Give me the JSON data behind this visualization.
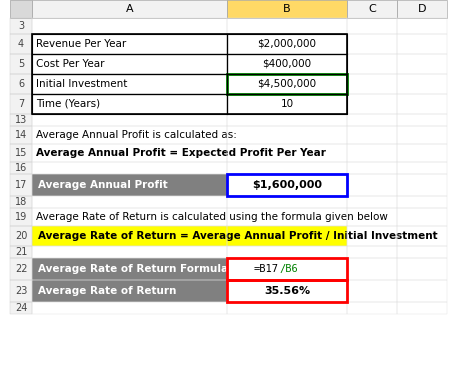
{
  "bg_color": "#ffffff",
  "header_col_labels": [
    "",
    "A",
    "B",
    "C",
    "D"
  ],
  "col_header_bg": "#f2f2f2",
  "col_B_header_bg": "#ffd966",
  "rows": [
    {
      "row": "3",
      "a": "",
      "b": ""
    },
    {
      "row": "4",
      "a": "Revenue Per Year",
      "b": "$2,000,000"
    },
    {
      "row": "5",
      "a": "Cost Per Year",
      "b": "$400,000"
    },
    {
      "row": "6",
      "a": "Initial Investment",
      "b": "$4,500,000"
    },
    {
      "row": "7",
      "a": "Time (Years)",
      "b": "10"
    },
    {
      "row": "13",
      "a": "",
      "b": ""
    },
    {
      "row": "14",
      "a": "Average Annual Profit is calculated as:",
      "b": ""
    },
    {
      "row": "15",
      "a": "Average Annual Profit = Expected Profit Per Year",
      "b": ""
    },
    {
      "row": "16",
      "a": "",
      "b": ""
    },
    {
      "row": "17",
      "a": "Average Annual Profit",
      "b": "$1,600,000"
    },
    {
      "row": "18",
      "a": "",
      "b": ""
    },
    {
      "row": "19",
      "a": "Average Rate of Return is calculated using the formula given below",
      "b": ""
    },
    {
      "row": "20",
      "a": "Average Rate of Return = Average Annual Profit / Initial Investment",
      "b": ""
    },
    {
      "row": "21",
      "a": "",
      "b": ""
    },
    {
      "row": "22",
      "a": "Average Rate of Return Formula",
      "b": "=B17/B6"
    },
    {
      "row": "23",
      "a": "Average Rate of Return",
      "b": "35.56%"
    },
    {
      "row": "24",
      "a": "",
      "b": ""
    }
  ],
  "table_rows": [
    4,
    5,
    6,
    7
  ],
  "gray_rows": [
    17,
    22,
    23
  ],
  "yellow_row": 20,
  "bold_row": 15,
  "gray_row_bg": "#808080",
  "gray_row_fg": "#ffffff",
  "yellow_row_bg": "#ffff00",
  "yellow_row_fg": "#000000",
  "table_border_color": "#000000",
  "green_border_row": 6,
  "blue_border_row": 17,
  "red_border_rows": [
    22,
    23
  ],
  "formula_parts": {
    "b17": "=B17",
    "b6": "/B6"
  },
  "formula_colors": {
    "b17": "#000000",
    "b6": "#008000"
  }
}
